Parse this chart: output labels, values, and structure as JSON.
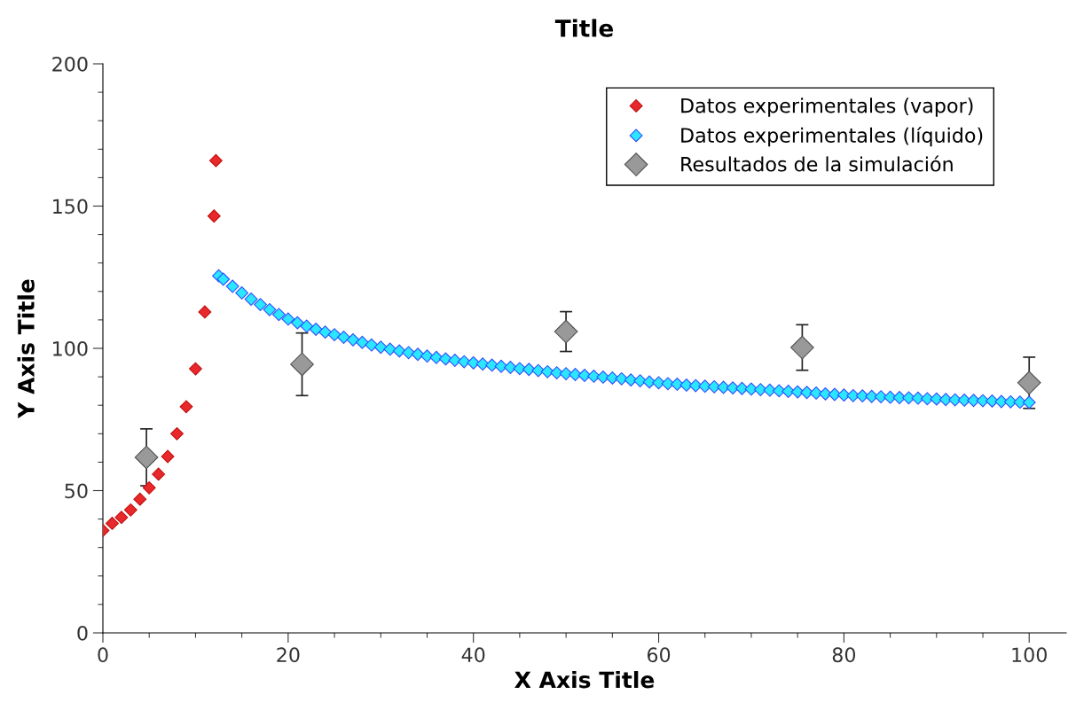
{
  "chart_data": {
    "type": "scatter",
    "title": "Title",
    "xlabel": "X Axis Title",
    "ylabel": "Y Axis Title",
    "xlim": [
      0,
      104
    ],
    "ylim": [
      0,
      200
    ],
    "xticks": [
      0,
      20,
      40,
      60,
      80,
      100
    ],
    "yticks": [
      0,
      50,
      100,
      150,
      200
    ],
    "grid": false,
    "legend": "top right",
    "marker": "diamond",
    "series": [
      {
        "name": "Datos experimentales (vapor)",
        "color": "#e8282b",
        "x": [
          0,
          1,
          2,
          3,
          4,
          5,
          6,
          7,
          8,
          9,
          10,
          11,
          12,
          12.2
        ],
        "values": [
          36,
          38.5,
          40.6,
          43.2,
          47,
          51,
          55.8,
          62,
          70,
          79.5,
          92.8,
          112.8,
          146.5,
          166
        ]
      },
      {
        "name": "Datos experimentales (líquido)",
        "color": "#2be6ff",
        "x": [
          12.5,
          13,
          14,
          15,
          16,
          17,
          18,
          19,
          20,
          21,
          22,
          23,
          24,
          25,
          26,
          27,
          28,
          29,
          30,
          31,
          32,
          33,
          34,
          35,
          36,
          37,
          38,
          39,
          40,
          41,
          42,
          43,
          44,
          45,
          46,
          47,
          48,
          49,
          50,
          51,
          52,
          53,
          54,
          55,
          56,
          57,
          58,
          59,
          60,
          61,
          62,
          63,
          64,
          65,
          66,
          67,
          68,
          69,
          70,
          71,
          72,
          73,
          74,
          75,
          76,
          77,
          78,
          79,
          80,
          81,
          82,
          83,
          84,
          85,
          86,
          87,
          88,
          89,
          90,
          91,
          92,
          93,
          94,
          95,
          96,
          97,
          98,
          99,
          100
        ],
        "values": [
          125.5,
          124.3,
          121.8,
          119.5,
          117.3,
          115.4,
          113.6,
          111.9,
          110.3,
          109,
          107.8,
          106.7,
          105.7,
          104.8,
          103.9,
          103,
          102.1,
          101.2,
          100.4,
          99.7,
          99.1,
          98.5,
          97.9,
          97.3,
          96.8,
          96.3,
          95.8,
          95.3,
          94.9,
          94.5,
          94.1,
          93.7,
          93.3,
          92.9,
          92.6,
          92.2,
          91.8,
          91.4,
          91.1,
          90.8,
          90.5,
          90.2,
          89.9,
          89.6,
          89.3,
          88.9,
          88.6,
          88.2,
          87.9,
          87.6,
          87.4,
          87.1,
          86.9,
          86.7,
          86.5,
          86.3,
          86.1,
          85.9,
          85.7,
          85.5,
          85.3,
          85.1,
          84.9,
          84.7,
          84.5,
          84.3,
          84,
          83.8,
          83.6,
          83.4,
          83.3,
          83.1,
          83,
          82.8,
          82.7,
          82.6,
          82.5,
          82.3,
          82.2,
          82,
          81.9,
          81.8,
          81.7,
          81.6,
          81.5,
          81.3,
          81.2,
          81.1,
          81
        ]
      },
      {
        "name": "Resultados de la simulación",
        "color": "#999999",
        "x": [
          4.7,
          21.5,
          50,
          75.5,
          100
        ],
        "values": [
          61.7,
          94.4,
          105.9,
          100.3,
          87.9
        ],
        "errors": [
          10,
          11,
          7,
          8,
          9
        ]
      }
    ]
  }
}
